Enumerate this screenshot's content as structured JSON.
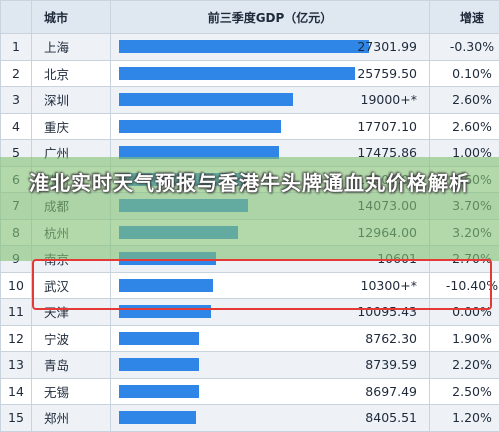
{
  "chart_data": {
    "type": "table",
    "columns": [
      "城市",
      "前三季度GDP（亿元）",
      "增速"
    ],
    "rows": [
      {
        "rank": "1",
        "city": "上海",
        "gdp": 27301.99,
        "gdp_label": "27301.99",
        "growth": "-0.30%"
      },
      {
        "rank": "2",
        "city": "北京",
        "gdp": 25759.5,
        "gdp_label": "25759.50",
        "growth": "0.10%"
      },
      {
        "rank": "3",
        "city": "深圳",
        "gdp": 19000,
        "gdp_label": "19000+*",
        "growth": "2.60%"
      },
      {
        "rank": "4",
        "city": "重庆",
        "gdp": 17707.1,
        "gdp_label": "17707.10",
        "growth": "2.60%"
      },
      {
        "rank": "5",
        "city": "广州",
        "gdp": 17475.86,
        "gdp_label": "17475.86",
        "growth": "1.00%"
      },
      {
        "rank": "6",
        "city": "苏州",
        "gdp": 14208.0,
        "gdp_label": "14208.00",
        "growth": "2.60%"
      },
      {
        "rank": "7",
        "city": "成都",
        "gdp": 14073.0,
        "gdp_label": "14073.00",
        "growth": "3.70%"
      },
      {
        "rank": "8",
        "city": "杭州",
        "gdp": 12964.0,
        "gdp_label": "12964.00",
        "growth": "3.20%"
      },
      {
        "rank": "9",
        "city": "南京",
        "gdp": 10601.0,
        "gdp_label": "10601",
        "growth": "2.70%"
      },
      {
        "rank": "10",
        "city": "武汉",
        "gdp": 10300,
        "gdp_label": "10300+*",
        "growth": "-10.40%"
      },
      {
        "rank": "11",
        "city": "天津",
        "gdp": 10095.43,
        "gdp_label": "10095.43",
        "growth": "0.00%"
      },
      {
        "rank": "12",
        "city": "宁波",
        "gdp": 8762.3,
        "gdp_label": "8762.30",
        "growth": "1.90%"
      },
      {
        "rank": "13",
        "city": "青岛",
        "gdp": 8739.59,
        "gdp_label": "8739.59",
        "growth": "2.20%"
      },
      {
        "rank": "14",
        "city": "无锡",
        "gdp": 8697.49,
        "gdp_label": "8697.49",
        "growth": "2.50%"
      },
      {
        "rank": "15",
        "city": "郑州",
        "gdp": 8405.51,
        "gdp_label": "8405.51",
        "growth": "1.20%"
      }
    ],
    "bar_max": 27301.99,
    "bar_color": "#2f86e6",
    "highlight_color": "#e53935",
    "highlighted_rows": [
      "10",
      "11"
    ]
  },
  "overlay": {
    "title": "淮北实时天气预报与香港牛头牌通血丸价格解析",
    "band_color": "#84c276"
  }
}
